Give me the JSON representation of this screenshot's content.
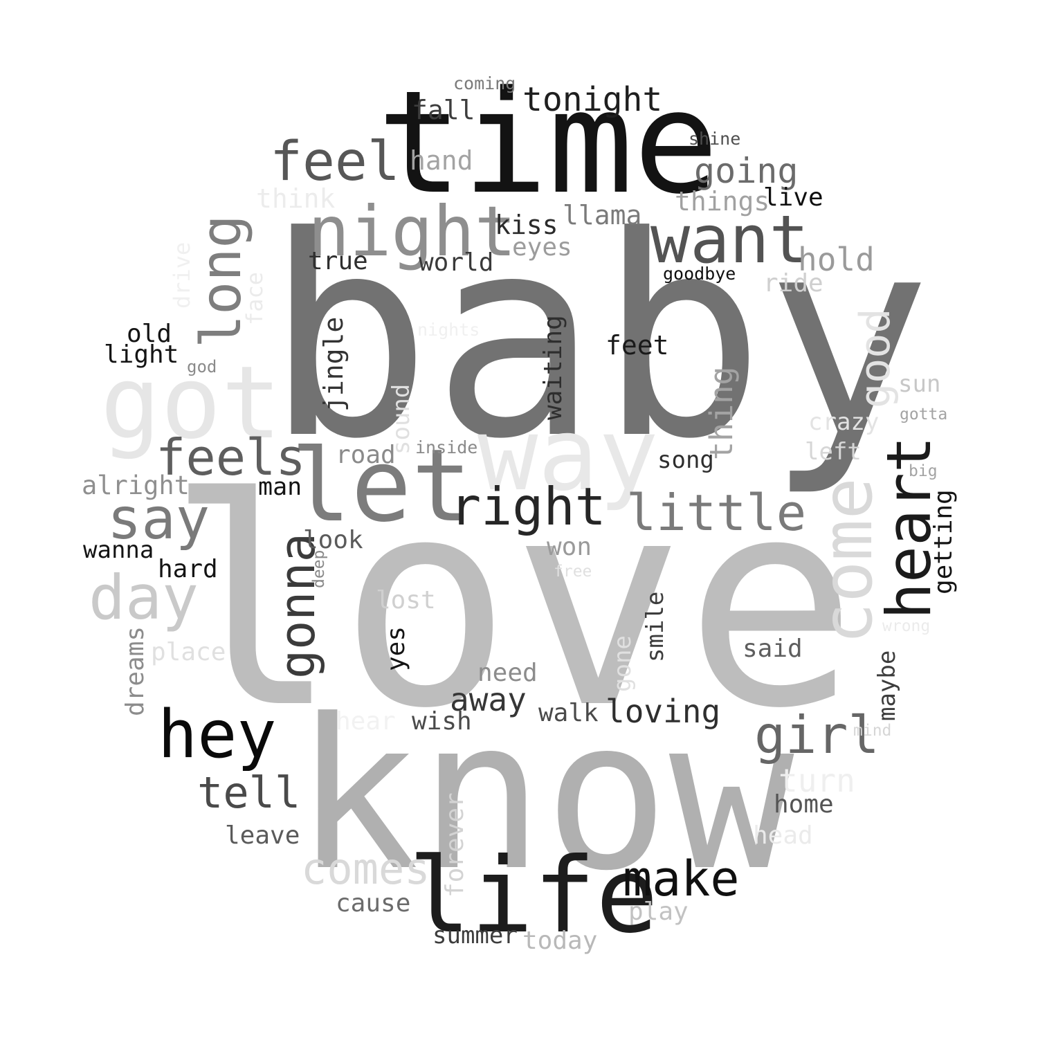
{
  "words": [
    {
      "text": "love",
      "color": "#bdbdbd"
    },
    {
      "text": "baby",
      "color": "#727272"
    },
    {
      "text": "know",
      "color": "#b0b0b0"
    },
    {
      "text": "time",
      "color": "#131313"
    },
    {
      "text": "way",
      "color": "#e8e8e8"
    },
    {
      "text": "let",
      "color": "#7c7c7c"
    },
    {
      "text": "got",
      "color": "#e6e6e6"
    },
    {
      "text": "life",
      "color": "#1d1d1d"
    },
    {
      "text": "night",
      "color": "#8e8e8e"
    },
    {
      "text": "come",
      "color": "#d9d9d9"
    },
    {
      "text": "heart",
      "color": "#1b1b1b"
    },
    {
      "text": "want",
      "color": "#535353"
    },
    {
      "text": "feel",
      "color": "#575757"
    },
    {
      "text": "hey",
      "color": "#0a0a0a"
    },
    {
      "text": "long",
      "color": "#7e7e7e"
    },
    {
      "text": "say",
      "color": "#7a7a7a"
    },
    {
      "text": "day",
      "color": "#c9c9c9"
    },
    {
      "text": "right",
      "color": "#262626"
    },
    {
      "text": "feels",
      "color": "#5e5e5e"
    },
    {
      "text": "little",
      "color": "#7a7a7a"
    },
    {
      "text": "gonna",
      "color": "#3b3b3b"
    },
    {
      "text": "make",
      "color": "#101010"
    },
    {
      "text": "girl",
      "color": "#666666"
    },
    {
      "text": "good",
      "color": "#e3e3e3"
    },
    {
      "text": "tell",
      "color": "#4a4a4a"
    },
    {
      "text": "comes",
      "color": "#d9d9d9"
    },
    {
      "text": "tonight",
      "color": "#1f1f1f"
    },
    {
      "text": "going",
      "color": "#6b6b6b"
    },
    {
      "text": "thing",
      "color": "#a3a3a3"
    },
    {
      "text": "turn",
      "color": "#efefef"
    },
    {
      "text": "loving",
      "color": "#2e2e2e"
    },
    {
      "text": "away",
      "color": "#363636"
    },
    {
      "text": "hold",
      "color": "#9a9a9a"
    },
    {
      "text": "hand",
      "color": "#a3a3a3"
    },
    {
      "text": "llama",
      "color": "#7a7a7a"
    },
    {
      "text": "fall",
      "color": "#3d3d3d"
    },
    {
      "text": "kiss",
      "color": "#2b2b2b"
    },
    {
      "text": "things",
      "color": "#a1a1a1"
    },
    {
      "text": "eyes",
      "color": "#9c9c9c"
    },
    {
      "text": "true",
      "color": "#2e2e2e"
    },
    {
      "text": "world",
      "color": "#3a3a3a"
    },
    {
      "text": "live",
      "color": "#0f0f0f"
    },
    {
      "text": "think",
      "color": "#ececec"
    },
    {
      "text": "jingle",
      "color": "#333333"
    },
    {
      "text": "waiting",
      "color": "#2e2e2e"
    },
    {
      "text": "feet",
      "color": "#1a1a1a"
    },
    {
      "text": "ride",
      "color": "#cfcfcf"
    },
    {
      "text": "old",
      "color": "#141414"
    },
    {
      "text": "light",
      "color": "#141414"
    },
    {
      "text": "sound",
      "color": "#e0e0e0"
    },
    {
      "text": "road",
      "color": "#8a8a8a"
    },
    {
      "text": "song",
      "color": "#2e2e2e"
    },
    {
      "text": "alright",
      "color": "#8f8f8f"
    },
    {
      "text": "man",
      "color": "#141414"
    },
    {
      "text": "look",
      "color": "#5a5a5a"
    },
    {
      "text": "won",
      "color": "#9a9a9a"
    },
    {
      "text": "wanna",
      "color": "#141414"
    },
    {
      "text": "hard",
      "color": "#141414"
    },
    {
      "text": "lost",
      "color": "#d0d0d0"
    },
    {
      "text": "need",
      "color": "#8c8c8c"
    },
    {
      "text": "said",
      "color": "#5e5e5e"
    },
    {
      "text": "getting",
      "color": "#141414"
    },
    {
      "text": "dreams",
      "color": "#8c8c8c"
    },
    {
      "text": "place",
      "color": "#e0e0e0"
    },
    {
      "text": "smile",
      "color": "#3d3d3d"
    },
    {
      "text": "gone",
      "color": "#e0e0e0"
    },
    {
      "text": "yes",
      "color": "#141414"
    },
    {
      "text": "walk",
      "color": "#4a4a4a"
    },
    {
      "text": "wish",
      "color": "#4a4a4a"
    },
    {
      "text": "hear",
      "color": "#f2f2f2"
    },
    {
      "text": "maybe",
      "color": "#3d3d3d"
    },
    {
      "text": "home",
      "color": "#545454"
    },
    {
      "text": "head",
      "color": "#ebebeb"
    },
    {
      "text": "leave",
      "color": "#5a5a5a"
    },
    {
      "text": "forever",
      "color": "#d3d3d3"
    },
    {
      "text": "cause",
      "color": "#6b6b6b"
    },
    {
      "text": "play",
      "color": "#c2c2c2"
    },
    {
      "text": "summer",
      "color": "#3d3d3d"
    },
    {
      "text": "today",
      "color": "#b8b8b8"
    },
    {
      "text": "drive",
      "color": "#f0f0f0"
    },
    {
      "text": "face",
      "color": "#ebebeb"
    },
    {
      "text": "sun",
      "color": "#c7c7c7"
    },
    {
      "text": "crazy",
      "color": "#e3e3e3"
    },
    {
      "text": "left",
      "color": "#d6d6d6"
    },
    {
      "text": "coming",
      "color": "#7a7a7a"
    },
    {
      "text": "shine",
      "color": "#4f4f4f"
    },
    {
      "text": "goodbye",
      "color": "#0f0f0f"
    },
    {
      "text": "nights",
      "color": "#f0f0f0"
    },
    {
      "text": "god",
      "color": "#8a8a8a"
    },
    {
      "text": "inside",
      "color": "#8a8a8a"
    },
    {
      "text": "gotta",
      "color": "#a3a3a3"
    },
    {
      "text": "big",
      "color": "#a3a3a3"
    },
    {
      "text": "free",
      "color": "#e0e0e0"
    },
    {
      "text": "deep",
      "color": "#8a8a8a"
    },
    {
      "text": "wrong",
      "color": "#ebebeb"
    },
    {
      "text": "mind",
      "color": "#d6d6d6"
    }
  ]
}
